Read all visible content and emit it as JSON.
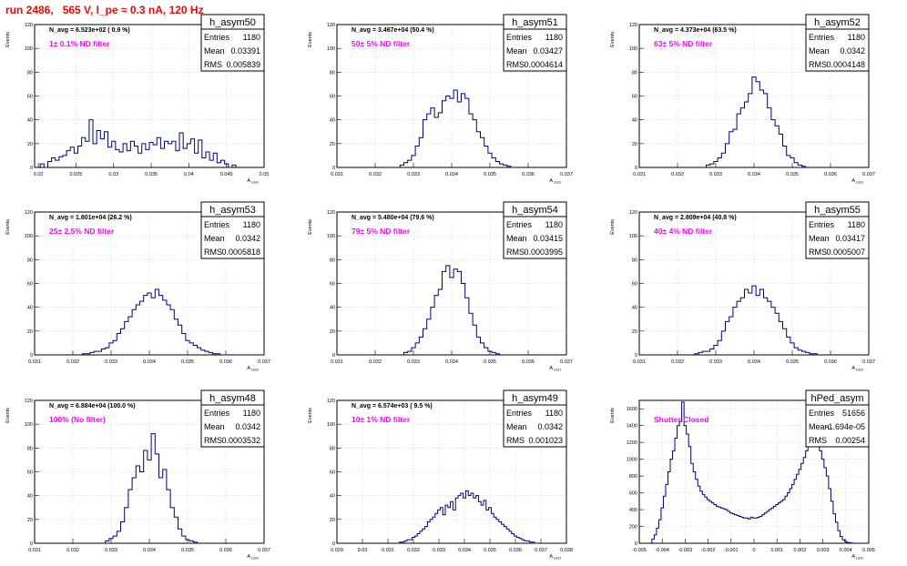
{
  "page": {
    "title": "run 2486,   565 V, I_pe ≈ 0.3 nA, 120 Hz"
  },
  "stats_labels": {
    "entries": "Entries",
    "mean": "Mean",
    "rms": "RMS"
  },
  "chart_data": [
    {
      "type": "histogram",
      "hist_name": "h_asym50",
      "xlabel": "A_{LED}",
      "ylabel": "Events",
      "xlim": [
        0.0195,
        0.05
      ],
      "ylim": [
        0,
        120
      ],
      "grid": true,
      "legend": "top-right",
      "xticks": [
        0.02,
        0.025,
        0.03,
        0.035,
        0.04,
        0.045,
        0.05
      ],
      "xtick_labels": [
        "0.02",
        "0.025",
        "0.03",
        "0.035",
        "0.04",
        "0.045",
        "0.05"
      ],
      "yticks": [
        0,
        20,
        40,
        60,
        80,
        100,
        120
      ],
      "n_avg": "N_avg = 6.523e+02 ( 0.9 %)",
      "filter": "1± 0.1% ND filter",
      "stats": {
        "entries": "1180",
        "mean": "0.03391",
        "rms": "0.005839"
      },
      "bin_width": 0.0005,
      "x": [
        0.0205,
        0.021,
        0.0215,
        0.022,
        0.0225,
        0.023,
        0.0235,
        0.024,
        0.0245,
        0.025,
        0.0255,
        0.026,
        0.0265,
        0.027,
        0.0275,
        0.028,
        0.0285,
        0.029,
        0.0295,
        0.03,
        0.0305,
        0.031,
        0.0315,
        0.032,
        0.0325,
        0.033,
        0.0335,
        0.034,
        0.0345,
        0.035,
        0.0355,
        0.036,
        0.0365,
        0.037,
        0.0375,
        0.038,
        0.0385,
        0.039,
        0.0395,
        0.04,
        0.0405,
        0.041,
        0.0415,
        0.042,
        0.0425,
        0.043,
        0.0435,
        0.044,
        0.0445,
        0.045,
        0.0455,
        0.046
      ],
      "values": [
        3,
        0,
        5,
        8,
        6,
        9,
        10,
        14,
        17,
        12,
        18,
        25,
        22,
        40,
        20,
        31,
        24,
        30,
        17,
        22,
        15,
        13,
        20,
        14,
        22,
        18,
        12,
        20,
        15,
        21,
        19,
        25,
        16,
        22,
        20,
        22,
        14,
        29,
        16,
        20,
        24,
        12,
        23,
        8,
        13,
        6,
        12,
        4,
        6,
        3,
        0,
        2
      ]
    },
    {
      "type": "histogram",
      "hist_name": "h_asym51",
      "xlabel": "A_{LED}",
      "ylabel": "Events",
      "xlim": [
        0.031,
        0.037
      ],
      "ylim": [
        0,
        120
      ],
      "grid": true,
      "legend": "top-right",
      "xticks": [
        0.031,
        0.032,
        0.033,
        0.034,
        0.035,
        0.036,
        0.037
      ],
      "xtick_labels": [
        "0.031",
        "0.032",
        "0.033",
        "0.034",
        "0.035",
        "0.036",
        "0.037"
      ],
      "yticks": [
        0,
        20,
        40,
        60,
        80,
        100,
        120
      ],
      "n_avg": "N_avg = 3.467e+04 (50.4 %)",
      "filter": "50± 5% ND filter",
      "stats": {
        "entries": "1180",
        "mean": "0.03427",
        "rms": "0.0004614"
      },
      "bin_width": 0.0001,
      "x": [
        0.0327,
        0.0328,
        0.0329,
        0.033,
        0.0331,
        0.0332,
        0.0333,
        0.0334,
        0.0335,
        0.0336,
        0.0337,
        0.0338,
        0.0339,
        0.034,
        0.0341,
        0.0342,
        0.0343,
        0.0344,
        0.0345,
        0.0346,
        0.0347,
        0.0348,
        0.0349,
        0.035,
        0.0351,
        0.0352,
        0.0353,
        0.0354,
        0.0355,
        0.0356
      ],
      "values": [
        2,
        4,
        6,
        10,
        18,
        25,
        40,
        45,
        50,
        42,
        46,
        56,
        60,
        58,
        65,
        55,
        62,
        58,
        45,
        40,
        30,
        25,
        18,
        12,
        8,
        5,
        3,
        2,
        1,
        0
      ]
    },
    {
      "type": "histogram",
      "hist_name": "h_asym52",
      "xlabel": "A_{LED}",
      "ylabel": "Events",
      "xlim": [
        0.031,
        0.037
      ],
      "ylim": [
        0,
        120
      ],
      "grid": true,
      "legend": "top-right",
      "xticks": [
        0.031,
        0.032,
        0.033,
        0.034,
        0.035,
        0.036,
        0.037
      ],
      "xtick_labels": [
        "0.031",
        "0.032",
        "0.033",
        "0.034",
        "0.035",
        "0.036",
        "0.037"
      ],
      "yticks": [
        0,
        20,
        40,
        60,
        80,
        100,
        120
      ],
      "n_avg": "N_avg = 4.373e+04 (63.5 %)",
      "filter": "63± 5% ND filter",
      "stats": {
        "entries": "1180",
        "mean": "0.0342",
        "rms": "0.0004148"
      },
      "bin_width": 0.0001,
      "x": [
        0.0328,
        0.0329,
        0.033,
        0.0331,
        0.0332,
        0.0333,
        0.0334,
        0.0335,
        0.0336,
        0.0337,
        0.0338,
        0.0339,
        0.034,
        0.0341,
        0.0342,
        0.0343,
        0.0344,
        0.0345,
        0.0346,
        0.0347,
        0.0348,
        0.0349,
        0.035,
        0.0351,
        0.0352,
        0.0353
      ],
      "values": [
        2,
        3,
        5,
        8,
        12,
        20,
        30,
        32,
        45,
        50,
        55,
        62,
        76,
        72,
        65,
        62,
        50,
        40,
        35,
        28,
        18,
        10,
        8,
        4,
        2,
        1
      ]
    },
    {
      "type": "histogram",
      "hist_name": "h_asym53",
      "xlabel": "A_{LED}",
      "ylabel": "Events",
      "xlim": [
        0.031,
        0.037
      ],
      "ylim": [
        0,
        120
      ],
      "grid": true,
      "legend": "top-right",
      "xticks": [
        0.031,
        0.032,
        0.033,
        0.034,
        0.035,
        0.036,
        0.037
      ],
      "xtick_labels": [
        "0.031",
        "0.032",
        "0.033",
        "0.034",
        "0.035",
        "0.036",
        "0.037"
      ],
      "yticks": [
        0,
        20,
        40,
        60,
        80,
        100,
        120
      ],
      "n_avg": "N_avg = 1.801e+04 (26.2 %)",
      "filter": "25± 2.5% ND filter",
      "stats": {
        "entries": "1180",
        "mean": "0.0342",
        "rms": "0.0005818"
      },
      "bin_width": 0.0001,
      "x": [
        0.0323,
        0.0324,
        0.0325,
        0.0326,
        0.0327,
        0.0328,
        0.0329,
        0.033,
        0.0331,
        0.0332,
        0.0333,
        0.0334,
        0.0335,
        0.0336,
        0.0337,
        0.0338,
        0.0339,
        0.034,
        0.0341,
        0.0342,
        0.0343,
        0.0344,
        0.0345,
        0.0346,
        0.0347,
        0.0348,
        0.0349,
        0.035,
        0.0351,
        0.0352,
        0.0353,
        0.0354,
        0.0355,
        0.0356,
        0.0357,
        0.0358,
        0.0359,
        0.036
      ],
      "values": [
        1,
        1,
        2,
        3,
        3,
        5,
        6,
        10,
        12,
        18,
        22,
        28,
        32,
        38,
        42,
        45,
        50,
        52,
        48,
        55,
        50,
        46,
        42,
        38,
        30,
        25,
        18,
        12,
        10,
        8,
        6,
        4,
        3,
        2,
        1,
        1,
        0,
        0
      ]
    },
    {
      "type": "histogram",
      "hist_name": "h_asym54",
      "xlabel": "A_{LED}",
      "ylabel": "Events",
      "xlim": [
        0.031,
        0.037
      ],
      "ylim": [
        0,
        120
      ],
      "grid": true,
      "legend": "top-right",
      "xticks": [
        0.031,
        0.032,
        0.033,
        0.034,
        0.035,
        0.036,
        0.037
      ],
      "xtick_labels": [
        "0.031",
        "0.032",
        "0.033",
        "0.034",
        "0.035",
        "0.036",
        "0.037"
      ],
      "yticks": [
        0,
        20,
        40,
        60,
        80,
        100,
        120
      ],
      "n_avg": "N_avg = 5.480e+04 (79.6 %)",
      "filter": "79± 5% ND filter",
      "stats": {
        "entries": "1180",
        "mean": "0.03415",
        "rms": "0.0003995"
      },
      "bin_width": 0.0001,
      "x": [
        0.0328,
        0.0329,
        0.033,
        0.0331,
        0.0332,
        0.0333,
        0.0334,
        0.0335,
        0.0336,
        0.0337,
        0.0338,
        0.0339,
        0.034,
        0.0341,
        0.0342,
        0.0343,
        0.0344,
        0.0345,
        0.0346,
        0.0347,
        0.0348,
        0.0349,
        0.035,
        0.0351,
        0.0352
      ],
      "values": [
        2,
        3,
        6,
        10,
        15,
        22,
        30,
        40,
        50,
        55,
        70,
        75,
        65,
        72,
        70,
        60,
        48,
        35,
        25,
        15,
        10,
        6,
        3,
        2,
        1
      ]
    },
    {
      "type": "histogram",
      "hist_name": "h_asym55",
      "xlabel": "A_{LED}",
      "ylabel": "Events",
      "xlim": [
        0.031,
        0.037
      ],
      "ylim": [
        0,
        120
      ],
      "grid": true,
      "legend": "top-right",
      "xticks": [
        0.031,
        0.032,
        0.033,
        0.034,
        0.035,
        0.036,
        0.037
      ],
      "xtick_labels": [
        "0.031",
        "0.032",
        "0.033",
        "0.034",
        "0.035",
        "0.036",
        "0.037"
      ],
      "yticks": [
        0,
        20,
        40,
        60,
        80,
        100,
        120
      ],
      "n_avg": "N_avg = 2.809e+04 (40.8 %)",
      "filter": "40± 4% ND filter",
      "stats": {
        "entries": "1180",
        "mean": "0.03417",
        "rms": "0.0005007"
      },
      "bin_width": 0.0001,
      "x": [
        0.0325,
        0.0326,
        0.0327,
        0.0328,
        0.0329,
        0.033,
        0.0331,
        0.0332,
        0.0333,
        0.0334,
        0.0335,
        0.0336,
        0.0337,
        0.0338,
        0.0339,
        0.034,
        0.0341,
        0.0342,
        0.0343,
        0.0344,
        0.0345,
        0.0346,
        0.0347,
        0.0348,
        0.0349,
        0.035,
        0.0351,
        0.0352,
        0.0353,
        0.0354,
        0.0355,
        0.0356
      ],
      "values": [
        1,
        2,
        3,
        3,
        5,
        8,
        12,
        20,
        28,
        32,
        40,
        45,
        48,
        55,
        52,
        58,
        50,
        55,
        48,
        45,
        40,
        35,
        28,
        22,
        15,
        10,
        6,
        4,
        3,
        2,
        1,
        1
      ]
    },
    {
      "type": "histogram",
      "hist_name": "h_asym48",
      "xlabel": "A_{LED}",
      "ylabel": "Events",
      "xlim": [
        0.031,
        0.037
      ],
      "ylim": [
        0,
        120
      ],
      "grid": true,
      "legend": "top-right",
      "xticks": [
        0.031,
        0.032,
        0.033,
        0.034,
        0.035,
        0.036,
        0.037
      ],
      "xtick_labels": [
        "0.031",
        "0.032",
        "0.033",
        "0.034",
        "0.035",
        "0.036",
        "0.037"
      ],
      "yticks": [
        0,
        20,
        40,
        60,
        80,
        100,
        120
      ],
      "n_avg": "N_avg = 6.884e+04 (100.0 %)",
      "filter": "100% (No filter)",
      "stats": {
        "entries": "1180",
        "mean": "0.0342",
        "rms": "0.0003532"
      },
      "bin_width": 0.0001,
      "x": [
        0.0329,
        0.033,
        0.0331,
        0.0332,
        0.0333,
        0.0334,
        0.0335,
        0.0336,
        0.0337,
        0.0338,
        0.0339,
        0.034,
        0.0341,
        0.0342,
        0.0343,
        0.0344,
        0.0345,
        0.0346,
        0.0347,
        0.0348,
        0.0349,
        0.035,
        0.0351,
        0.0352
      ],
      "values": [
        2,
        4,
        6,
        10,
        18,
        30,
        45,
        55,
        65,
        60,
        78,
        70,
        92,
        75,
        55,
        62,
        45,
        30,
        22,
        12,
        6,
        3,
        2,
        1
      ]
    },
    {
      "type": "histogram",
      "hist_name": "h_asym49",
      "xlabel": "A_{LED}",
      "ylabel": "Events",
      "xlim": [
        0.029,
        0.038
      ],
      "ylim": [
        0,
        120
      ],
      "grid": true,
      "legend": "top-right",
      "xticks": [
        0.029,
        0.03,
        0.031,
        0.032,
        0.033,
        0.034,
        0.035,
        0.036,
        0.037,
        0.038
      ],
      "xtick_labels": [
        "0.029",
        "0.03",
        "0.031",
        "0.032",
        "0.033",
        "0.034",
        "0.035",
        "0.036",
        "0.037",
        "0.038"
      ],
      "yticks": [
        0,
        20,
        40,
        60,
        80,
        100,
        120
      ],
      "n_avg": "N_avg = 6.574e+03 ( 9.5 %)",
      "filter": "10± 1% ND filter",
      "stats": {
        "entries": "1180",
        "mean": "0.0342",
        "rms": "0.001023"
      },
      "bin_width": 0.0001,
      "x": [
        0.0315,
        0.0316,
        0.0317,
        0.0318,
        0.0319,
        0.032,
        0.0321,
        0.0322,
        0.0323,
        0.0324,
        0.0325,
        0.0326,
        0.0327,
        0.0328,
        0.0329,
        0.033,
        0.0331,
        0.0332,
        0.0333,
        0.0334,
        0.0335,
        0.0336,
        0.0337,
        0.0338,
        0.0339,
        0.034,
        0.0341,
        0.0342,
        0.0343,
        0.0344,
        0.0345,
        0.0346,
        0.0347,
        0.0348,
        0.0349,
        0.035,
        0.0351,
        0.0352,
        0.0353,
        0.0354,
        0.0355,
        0.0356,
        0.0357,
        0.0358,
        0.0359,
        0.036,
        0.0361,
        0.0362,
        0.0363,
        0.0364,
        0.0365,
        0.0366,
        0.0367,
        0.0368
      ],
      "values": [
        1,
        1,
        2,
        3,
        3,
        5,
        6,
        8,
        10,
        12,
        14,
        18,
        20,
        22,
        25,
        28,
        30,
        24,
        32,
        30,
        35,
        28,
        38,
        40,
        42,
        38,
        44,
        40,
        42,
        38,
        40,
        35,
        32,
        36,
        28,
        30,
        25,
        22,
        20,
        18,
        16,
        14,
        12,
        10,
        8,
        6,
        5,
        4,
        3,
        2,
        2,
        1,
        1,
        0
      ]
    },
    {
      "type": "histogram",
      "hist_name": "hPed_asym",
      "xlabel": "A_{LED}",
      "ylabel": "Events",
      "xlim": [
        -0.005,
        0.005
      ],
      "ylim": [
        0,
        1700
      ],
      "grid": true,
      "legend": "top-right",
      "xticks": [
        -0.005,
        -0.004,
        -0.003,
        -0.002,
        -0.001,
        0,
        0.001,
        0.002,
        0.003,
        0.004,
        0.005
      ],
      "xtick_labels": [
        "-0.005",
        "-0.004",
        "-0.003",
        "-0.002",
        "-0.001",
        "0",
        "0.001",
        "0.002",
        "0.003",
        "0.004",
        "0.005"
      ],
      "yticks": [
        0,
        200,
        400,
        600,
        800,
        1000,
        1200,
        1400,
        1600
      ],
      "n_avg": "",
      "filter": "Shutter Closed",
      "stats": {
        "entries": "51656",
        "mean": "-1.694e-05",
        "rms": "0.00254"
      },
      "bin_width": 0.0001,
      "x": [
        -0.0044,
        -0.0043,
        -0.0042,
        -0.0041,
        -0.004,
        -0.0039,
        -0.0038,
        -0.0037,
        -0.0036,
        -0.0035,
        -0.0034,
        -0.0033,
        -0.0032,
        -0.0031,
        -0.003,
        -0.0029,
        -0.0028,
        -0.0027,
        -0.0026,
        -0.0025,
        -0.0024,
        -0.0023,
        -0.0022,
        -0.0021,
        -0.002,
        -0.0019,
        -0.0018,
        -0.0017,
        -0.0016,
        -0.0015,
        -0.0014,
        -0.0013,
        -0.0012,
        -0.0011,
        -0.001,
        -0.0009,
        -0.0008,
        -0.0007,
        -0.0006,
        -0.0005,
        -0.0004,
        -0.0003,
        -0.0002,
        -0.0001,
        0,
        0.0001,
        0.0002,
        0.0003,
        0.0004,
        0.0005,
        0.0006,
        0.0007,
        0.0008,
        0.0009,
        0.001,
        0.0011,
        0.0012,
        0.0013,
        0.0014,
        0.0015,
        0.0016,
        0.0017,
        0.0018,
        0.0019,
        0.002,
        0.0021,
        0.0022,
        0.0023,
        0.0024,
        0.0025,
        0.0026,
        0.0027,
        0.0028,
        0.0029,
        0.003,
        0.0031,
        0.0032,
        0.0033,
        0.0034,
        0.0035,
        0.0036,
        0.0037,
        0.0038,
        0.0039,
        0.004,
        0.0041,
        0.0042,
        0.0043
      ],
      "values": [
        50,
        100,
        180,
        280,
        420,
        560,
        700,
        850,
        1000,
        1100,
        1250,
        1400,
        1450,
        1680,
        1400,
        1300,
        1150,
        950,
        850,
        760,
        680,
        620,
        580,
        550,
        520,
        500,
        480,
        460,
        440,
        430,
        420,
        410,
        400,
        380,
        360,
        350,
        340,
        330,
        320,
        310,
        300,
        300,
        290,
        310,
        300,
        300,
        310,
        320,
        340,
        360,
        380,
        400,
        420,
        440,
        460,
        480,
        500,
        520,
        560,
        600,
        650,
        700,
        760,
        820,
        880,
        950,
        1020,
        1100,
        1150,
        1200,
        1150,
        1300,
        1180,
        1100,
        1000,
        900,
        800,
        650,
        500,
        350,
        250,
        150,
        80,
        40,
        20,
        10,
        5,
        2
      ]
    }
  ]
}
